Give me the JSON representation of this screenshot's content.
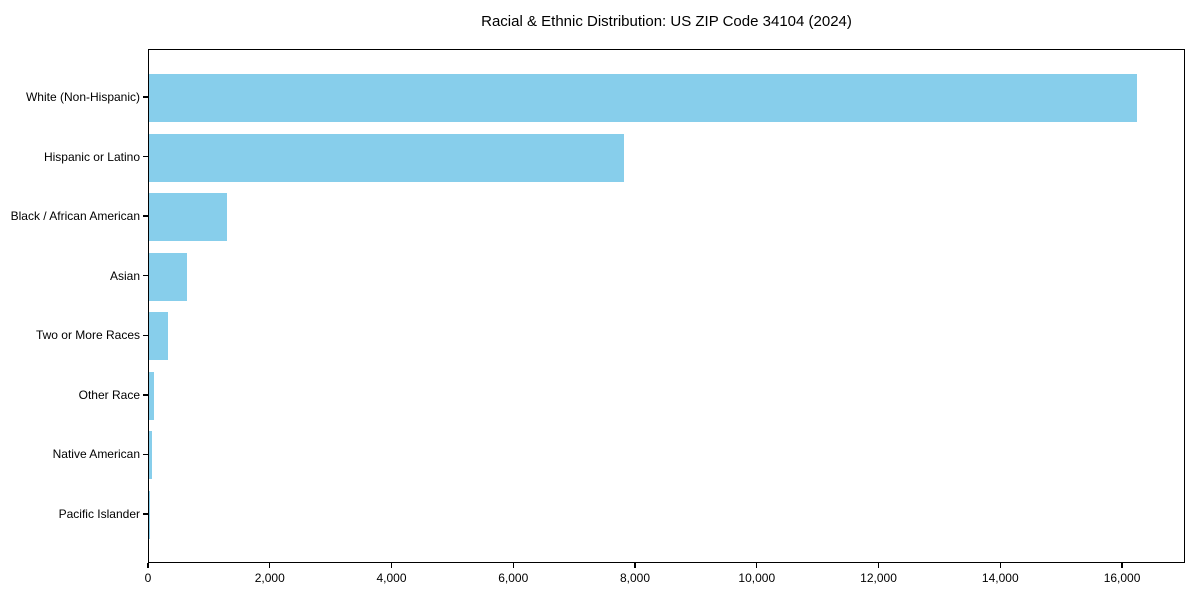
{
  "chart_data": {
    "type": "bar",
    "orientation": "horizontal",
    "title": "Racial & Ethnic Distribution: US ZIP Code 34104 (2024)",
    "categories": [
      "White (Non-Hispanic)",
      "Hispanic or Latino",
      "Black / African American",
      "Asian",
      "Two or More Races",
      "Other Race",
      "Native American",
      "Pacific Islander"
    ],
    "values": [
      16230,
      7800,
      1280,
      620,
      310,
      75,
      50,
      10
    ],
    "x_ticks": [
      0,
      2000,
      4000,
      6000,
      8000,
      10000,
      12000,
      14000,
      16000
    ],
    "xlim": [
      0,
      17034
    ],
    "xlabel": "",
    "ylabel": "",
    "grid": false,
    "legend_position": "none",
    "bar_color": "#87CEEB",
    "axis_color": "#000000",
    "background_color": "#ffffff"
  }
}
